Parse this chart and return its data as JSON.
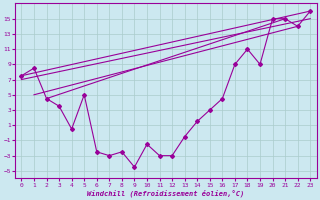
{
  "xlabel": "Windchill (Refroidissement éolien,°C)",
  "bg_color": "#cce8f0",
  "grid_color": "#aacccc",
  "line_color": "#990099",
  "x_hours": [
    0,
    1,
    2,
    3,
    4,
    5,
    6,
    7,
    8,
    9,
    10,
    11,
    12,
    13,
    14,
    15,
    16,
    17,
    18,
    19,
    20,
    21,
    22,
    23
  ],
  "y_windchill": [
    7.5,
    8.5,
    4.5,
    3.5,
    0.5,
    5.0,
    -2.5,
    -3.0,
    -2.5,
    -4.5,
    -1.5,
    -3.0,
    -3.0,
    -0.5,
    1.5,
    3.0,
    4.5,
    9.0,
    11.0,
    9.0,
    15.0,
    15.0,
    14.0,
    16.0
  ],
  "trend_lines": [
    [
      [
        0,
        7.5
      ],
      [
        23,
        16.0
      ]
    ],
    [
      [
        0,
        7.0
      ],
      [
        23,
        15.0
      ]
    ],
    [
      [
        1,
        5.0
      ],
      [
        22,
        14.0
      ]
    ],
    [
      [
        2,
        4.5
      ],
      [
        21,
        15.0
      ]
    ]
  ],
  "ylim": [
    -6,
    17
  ],
  "yticks": [
    -5,
    -3,
    -1,
    1,
    3,
    5,
    7,
    9,
    11,
    13,
    15
  ],
  "xlim": [
    -0.5,
    23.5
  ],
  "xticks": [
    0,
    1,
    2,
    3,
    4,
    5,
    6,
    7,
    8,
    9,
    10,
    11,
    12,
    13,
    14,
    15,
    16,
    17,
    18,
    19,
    20,
    21,
    22,
    23
  ]
}
